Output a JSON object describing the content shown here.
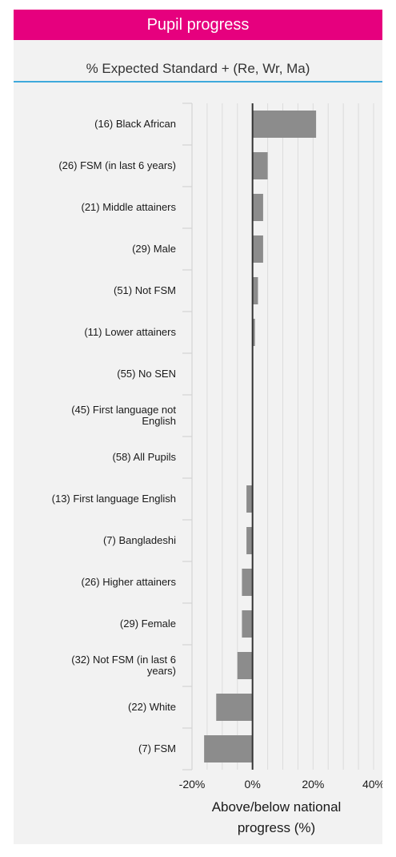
{
  "header": {
    "title": "Pupil progress"
  },
  "chart_data": {
    "type": "bar",
    "orientation": "horizontal",
    "title": "% Expected Standard + (Re, Wr, Ma)",
    "xlabel": "Above/below national progress (%)",
    "xlabel_lines": [
      "Above/below national",
      "progress (%)"
    ],
    "xlim": [
      -20,
      40
    ],
    "xticks": [
      -20,
      0,
      20,
      40
    ],
    "xtick_labels": [
      "-20%",
      "0%",
      "20%",
      "40%"
    ],
    "grid": true,
    "bar_color": "#8c8c8c",
    "zero_line_color": "#333333",
    "categories": [
      [
        "(16) Black African"
      ],
      [
        "(26) FSM (in last 6 years)"
      ],
      [
        "(21) Middle attainers"
      ],
      [
        "(29) Male"
      ],
      [
        "(51) Not FSM"
      ],
      [
        "(11) Lower attainers"
      ],
      [
        "(55) No SEN"
      ],
      [
        "(45) First language not",
        "English"
      ],
      [
        "(58) All Pupils"
      ],
      [
        "(13) First language English"
      ],
      [
        "(7) Bangladeshi"
      ],
      [
        "(26) Higher attainers"
      ],
      [
        "(29) Female"
      ],
      [
        "(32) Not FSM (in last 6",
        "years)"
      ],
      [
        "(22) White"
      ],
      [
        "(7) FSM"
      ]
    ],
    "values": [
      21,
      5,
      3.5,
      3.5,
      1.8,
      0.8,
      0,
      0,
      0,
      -2,
      -2,
      -3.5,
      -3.5,
      -5,
      -12,
      -16
    ]
  }
}
